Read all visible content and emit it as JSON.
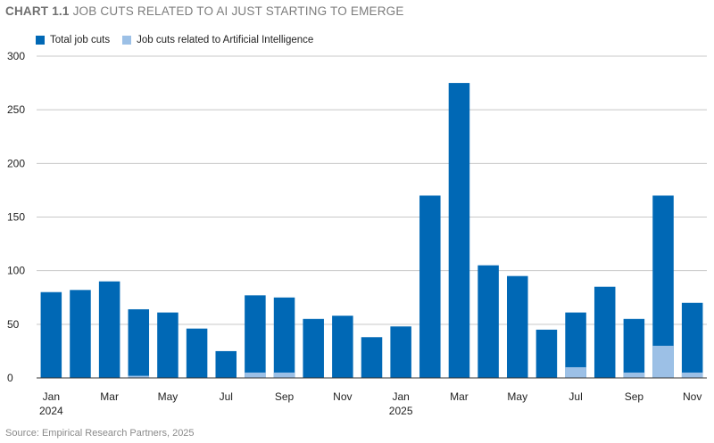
{
  "header": {
    "chart_number": "CHART 1.1",
    "title": "JOB CUTS RELATED TO AI JUST STARTING TO EMERGE"
  },
  "legend": {
    "total_label": "Total job cuts",
    "ai_label": "Job cuts related to Artificial Intelligence"
  },
  "footer": {
    "source": "Source: Empirical Research Partners, 2025"
  },
  "colors": {
    "total": "#0068b5",
    "ai": "#9cc0e6",
    "grid": "#c8c8c8",
    "axis": "#333333"
  },
  "chart_data": {
    "type": "bar",
    "ylim": [
      0,
      300
    ],
    "y_ticks": [
      0,
      50,
      100,
      150,
      200,
      250,
      300
    ],
    "categories": [
      "Jan 2024",
      "Feb 2024",
      "Mar 2024",
      "Apr 2024",
      "May 2024",
      "Jun 2024",
      "Jul 2024",
      "Aug 2024",
      "Sep 2024",
      "Oct 2024",
      "Nov 2024",
      "Dec 2024",
      "Jan 2025",
      "Feb 2025",
      "Mar 2025",
      "Apr 2025",
      "May 2025",
      "Jun 2025",
      "Jul 2025",
      "Aug 2025",
      "Sep 2025",
      "Oct 2025",
      "Nov 2025"
    ],
    "x_tick_labels": [
      "Jan",
      "",
      "Mar",
      "",
      "May",
      "",
      "Jul",
      "",
      "Sep",
      "",
      "Nov",
      "",
      "Jan",
      "",
      "Mar",
      "",
      "May",
      "",
      "Jul",
      "",
      "Sep",
      "",
      "Nov"
    ],
    "x_year_labels": [
      {
        "index": 0,
        "label": "2024"
      },
      {
        "index": 12,
        "label": "2025"
      }
    ],
    "series": [
      {
        "name": "Total job cuts",
        "values": [
          80,
          82,
          90,
          64,
          61,
          46,
          25,
          77,
          75,
          55,
          58,
          38,
          48,
          170,
          275,
          105,
          95,
          45,
          61,
          85,
          55,
          170,
          70
        ]
      },
      {
        "name": "Job cuts related to Artificial Intelligence",
        "values": [
          0,
          0,
          0,
          2,
          0,
          0,
          0,
          5,
          5,
          0,
          0,
          0,
          0,
          0,
          0,
          0,
          0,
          0,
          10,
          0,
          5,
          30,
          5
        ]
      }
    ],
    "grid": true,
    "legend_position": "top-left"
  }
}
